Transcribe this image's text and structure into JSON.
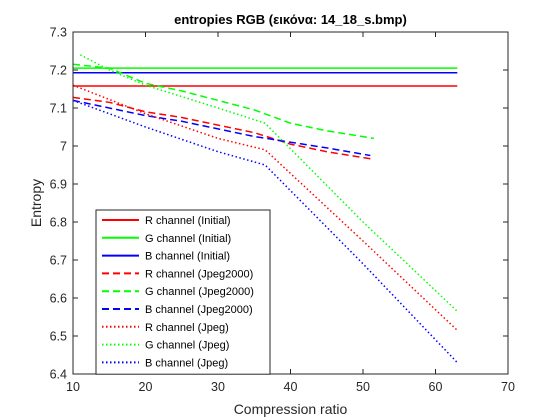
{
  "chart_data": {
    "type": "line",
    "title": "entropies RGB (εικόνα: 14_18_s.bmp)",
    "xlabel": "Compression ratio",
    "ylabel": "Entropy",
    "xlim": [
      10,
      70
    ],
    "ylim": [
      6.4,
      7.3
    ],
    "xticks": [
      10,
      20,
      30,
      40,
      50,
      60,
      70
    ],
    "yticks": [
      6.4,
      6.5,
      6.6,
      6.7,
      6.8,
      6.9,
      7.0,
      7.1,
      7.2,
      7.3
    ],
    "xtick_labels": [
      "10",
      "20",
      "30",
      "40",
      "50",
      "60",
      "70"
    ],
    "ytick_labels": [
      "6.4",
      "6.5",
      "6.6",
      "6.7",
      "6.8",
      "6.9",
      "7",
      "7.1",
      "7.2",
      "7.3"
    ],
    "grid": false,
    "legend_location": "lower-left",
    "series": [
      {
        "name": "R channel (Initial)",
        "color": "#ff0000",
        "style": "solid",
        "x": [
          10,
          63
        ],
        "y": [
          7.158,
          7.158
        ]
      },
      {
        "name": "G channel (Initial)",
        "color": "#00ff00",
        "style": "solid",
        "x": [
          10,
          63
        ],
        "y": [
          7.205,
          7.205
        ]
      },
      {
        "name": "B channel (Initial)",
        "color": "#0000ff",
        "style": "solid",
        "x": [
          10,
          63
        ],
        "y": [
          7.193,
          7.193
        ]
      },
      {
        "name": "R channel (Jpeg2000)",
        "color": "#ff0000",
        "style": "dashed",
        "x": [
          10,
          15,
          20,
          25,
          30,
          35,
          40,
          45,
          51.5
        ],
        "y": [
          7.128,
          7.115,
          7.09,
          7.075,
          7.055,
          7.035,
          7.005,
          6.985,
          6.965
        ]
      },
      {
        "name": "G channel (Jpeg2000)",
        "color": "#00ff00",
        "style": "dashed",
        "x": [
          10,
          15,
          20,
          25,
          30,
          35,
          40,
          45,
          51.5
        ],
        "y": [
          7.215,
          7.205,
          7.165,
          7.145,
          7.12,
          7.095,
          7.06,
          7.04,
          7.02
        ]
      },
      {
        "name": "B channel (Jpeg2000)",
        "color": "#0000ff",
        "style": "dashed",
        "x": [
          10,
          15,
          20,
          25,
          30,
          35,
          40,
          45,
          51
        ],
        "y": [
          7.12,
          7.1,
          7.08,
          7.065,
          7.045,
          7.025,
          7.01,
          6.995,
          6.975
        ]
      },
      {
        "name": "R channel (Jpeg)",
        "color": "#ff0000",
        "style": "dotted",
        "x": [
          10,
          20,
          30,
          36.5,
          50,
          63
        ],
        "y": [
          7.16,
          7.085,
          7.02,
          6.99,
          6.75,
          6.515
        ]
      },
      {
        "name": "G channel (Jpeg)",
        "color": "#00ff00",
        "style": "dotted",
        "x": [
          11,
          15,
          20,
          30,
          36.5,
          50,
          63
        ],
        "y": [
          7.24,
          7.2,
          7.16,
          7.1,
          7.06,
          6.8,
          6.565
        ]
      },
      {
        "name": "B channel (Jpeg)",
        "color": "#0000ff",
        "style": "dotted",
        "x": [
          10,
          20,
          30,
          36.5,
          50,
          63
        ],
        "y": [
          7.12,
          7.05,
          6.985,
          6.95,
          6.69,
          6.43
        ]
      }
    ]
  }
}
